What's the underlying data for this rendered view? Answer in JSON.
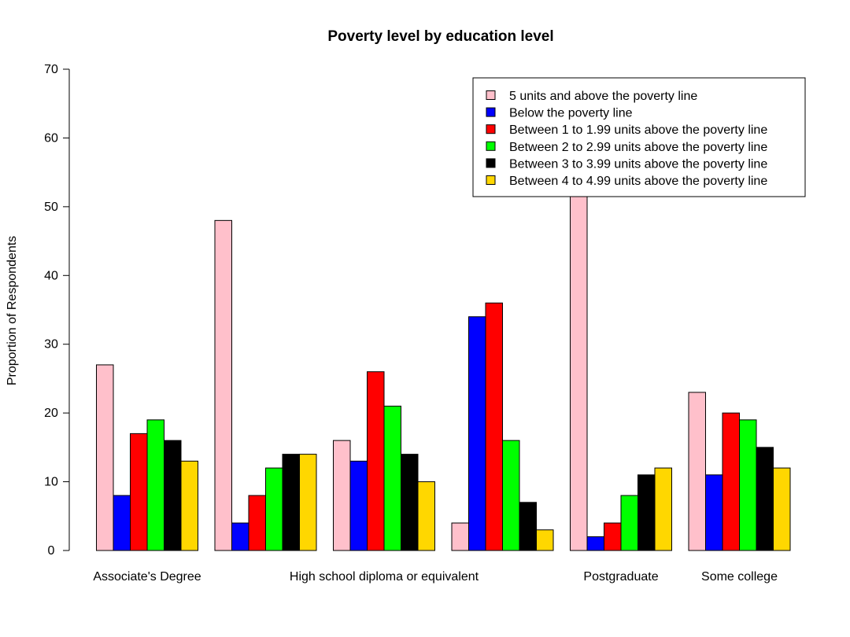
{
  "chart_data": {
    "type": "bar",
    "title": "Poverty level by education level",
    "xlabel": "",
    "ylabel": "Proportion of Respondents",
    "ylim": [
      0,
      70
    ],
    "yticks": [
      0,
      10,
      20,
      30,
      40,
      50,
      60,
      70
    ],
    "grid": false,
    "legend_position": "top-right",
    "groups": [
      "Associate's Degree",
      "",
      "High school diploma or equivalent",
      "",
      "Postgraduate",
      "Some college"
    ],
    "series": [
      {
        "name": "5 units and above the poverty line",
        "color": "#FFC0CB",
        "values": [
          27,
          48,
          16,
          4,
          55,
          23
        ]
      },
      {
        "name": "Below the poverty line",
        "color": "#0000FF",
        "values": [
          8,
          4,
          13,
          34,
          2,
          11
        ]
      },
      {
        "name": "Between 1 to 1.99 units above the poverty line",
        "color": "#FF0000",
        "values": [
          17,
          8,
          26,
          36,
          4,
          20
        ]
      },
      {
        "name": "Between 2 to 2.99 units above the poverty line",
        "color": "#00FF00",
        "values": [
          19,
          12,
          21,
          16,
          8,
          19
        ]
      },
      {
        "name": "Between 3 to 3.99 units above the poverty line",
        "color": "#000000",
        "values": [
          16,
          14,
          14,
          7,
          11,
          15
        ]
      },
      {
        "name": "Between 4 to 4.99 units above the poverty line",
        "color": "#FFD700",
        "values": [
          13,
          14,
          10,
          3,
          12,
          12
        ]
      }
    ]
  }
}
